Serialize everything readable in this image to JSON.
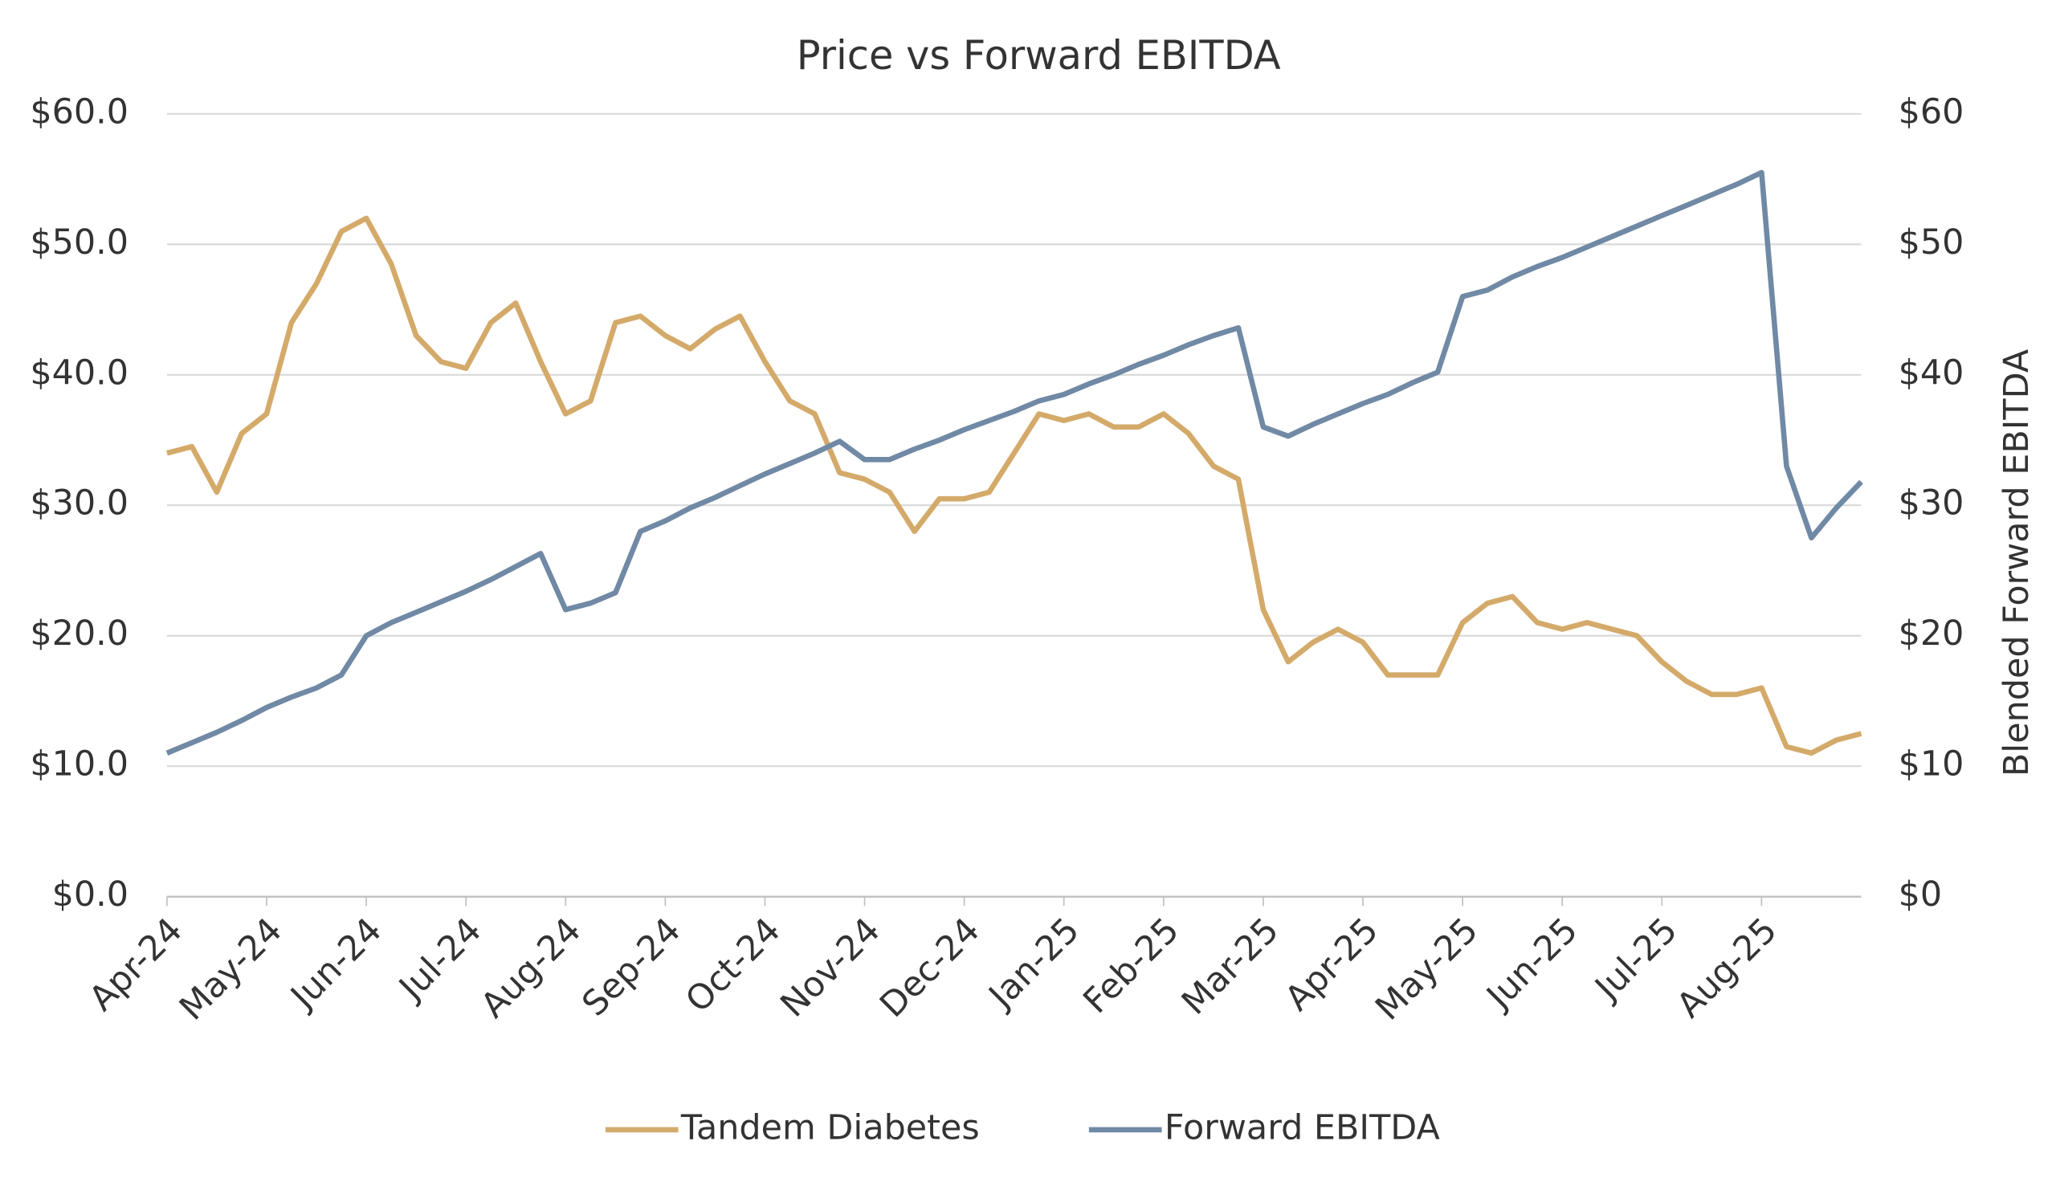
{
  "chart_data": {
    "type": "line",
    "title": "Price vs Forward EBITDA",
    "y2_label": "Blended Forward EBITDA",
    "categories": [
      "Apr-24",
      null,
      null,
      null,
      "May-24",
      null,
      null,
      null,
      "Jun-24",
      null,
      null,
      null,
      "Jul-24",
      null,
      null,
      null,
      "Aug-24",
      null,
      null,
      null,
      "Sep-24",
      null,
      null,
      null,
      "Oct-24",
      null,
      null,
      null,
      "Nov-24",
      null,
      null,
      null,
      "Dec-24",
      null,
      null,
      null,
      "Jan-25",
      null,
      null,
      null,
      "Feb-25",
      null,
      null,
      null,
      "Mar-25",
      null,
      null,
      null,
      "Apr-25",
      null,
      null,
      null,
      "May-25",
      null,
      null,
      null,
      "Jun-25",
      null,
      null,
      null,
      "Jul-25",
      null,
      null,
      null,
      "Aug-25",
      null,
      null,
      null,
      null
    ],
    "series": [
      {
        "name": "Tandem Diabetes",
        "color": "#d4aa6a",
        "axis": "y",
        "values": [
          34,
          34.5,
          31,
          35.5,
          37,
          44,
          47,
          51,
          52,
          48.5,
          43,
          41,
          40.5,
          44,
          45.5,
          41,
          37,
          38,
          44,
          44.5,
          43,
          42,
          43.5,
          44.5,
          41,
          38,
          37,
          32.5,
          32,
          31,
          28,
          30.5,
          30.5,
          31,
          34,
          37,
          36.5,
          37,
          36,
          36,
          37,
          35.5,
          33,
          32,
          22,
          18,
          19.5,
          20.5,
          19.5,
          17,
          17,
          17,
          21,
          22.5,
          23,
          21,
          20.5,
          21,
          20.5,
          20,
          18,
          16.5,
          15.5,
          15.5,
          16,
          11.5,
          11,
          12,
          12.5
        ]
      },
      {
        "name": "Forward EBITDA",
        "color": "#7089a5",
        "axis": "y2",
        "values": [
          11,
          11.8,
          12.6,
          13.5,
          14.5,
          15.3,
          16,
          17,
          20,
          21,
          21.8,
          22.6,
          23.4,
          24.3,
          25.3,
          26.3,
          22,
          22.5,
          23.3,
          28,
          28.8,
          29.8,
          30.6,
          31.5,
          32.4,
          33.2,
          34,
          34.9,
          33.5,
          33.5,
          34.3,
          35,
          35.8,
          36.5,
          37.2,
          38,
          38.5,
          39.3,
          40,
          40.8,
          41.5,
          42.3,
          43,
          43.6,
          36,
          35.3,
          36.2,
          37,
          37.8,
          38.5,
          39.4,
          40.2,
          46,
          46.5,
          47.5,
          48.3,
          49,
          49.8,
          50.6,
          51.4,
          52.2,
          53,
          53.8,
          54.6,
          55.5,
          33,
          27.5,
          29.8,
          31.8
        ]
      }
    ],
    "ylim": [
      0,
      60
    ],
    "yticks": [
      {
        "value": 0,
        "label": "$0.0"
      },
      {
        "value": 10,
        "label": "$10.0"
      },
      {
        "value": 20,
        "label": "$20.0"
      },
      {
        "value": 30,
        "label": "$30.0"
      },
      {
        "value": 40,
        "label": "$40.0"
      },
      {
        "value": 50,
        "label": "$50.0"
      },
      {
        "value": 60,
        "label": "$60.0"
      }
    ],
    "y2lim": [
      0,
      60
    ],
    "y2ticks": [
      {
        "value": 0,
        "label": "$0"
      },
      {
        "value": 10,
        "label": "$10"
      },
      {
        "value": 20,
        "label": "$20"
      },
      {
        "value": 30,
        "label": "$30"
      },
      {
        "value": 40,
        "label": "$40"
      },
      {
        "value": 50,
        "label": "$50"
      },
      {
        "value": 60,
        "label": "$60"
      }
    ],
    "grid": true,
    "legend": "bottom"
  }
}
